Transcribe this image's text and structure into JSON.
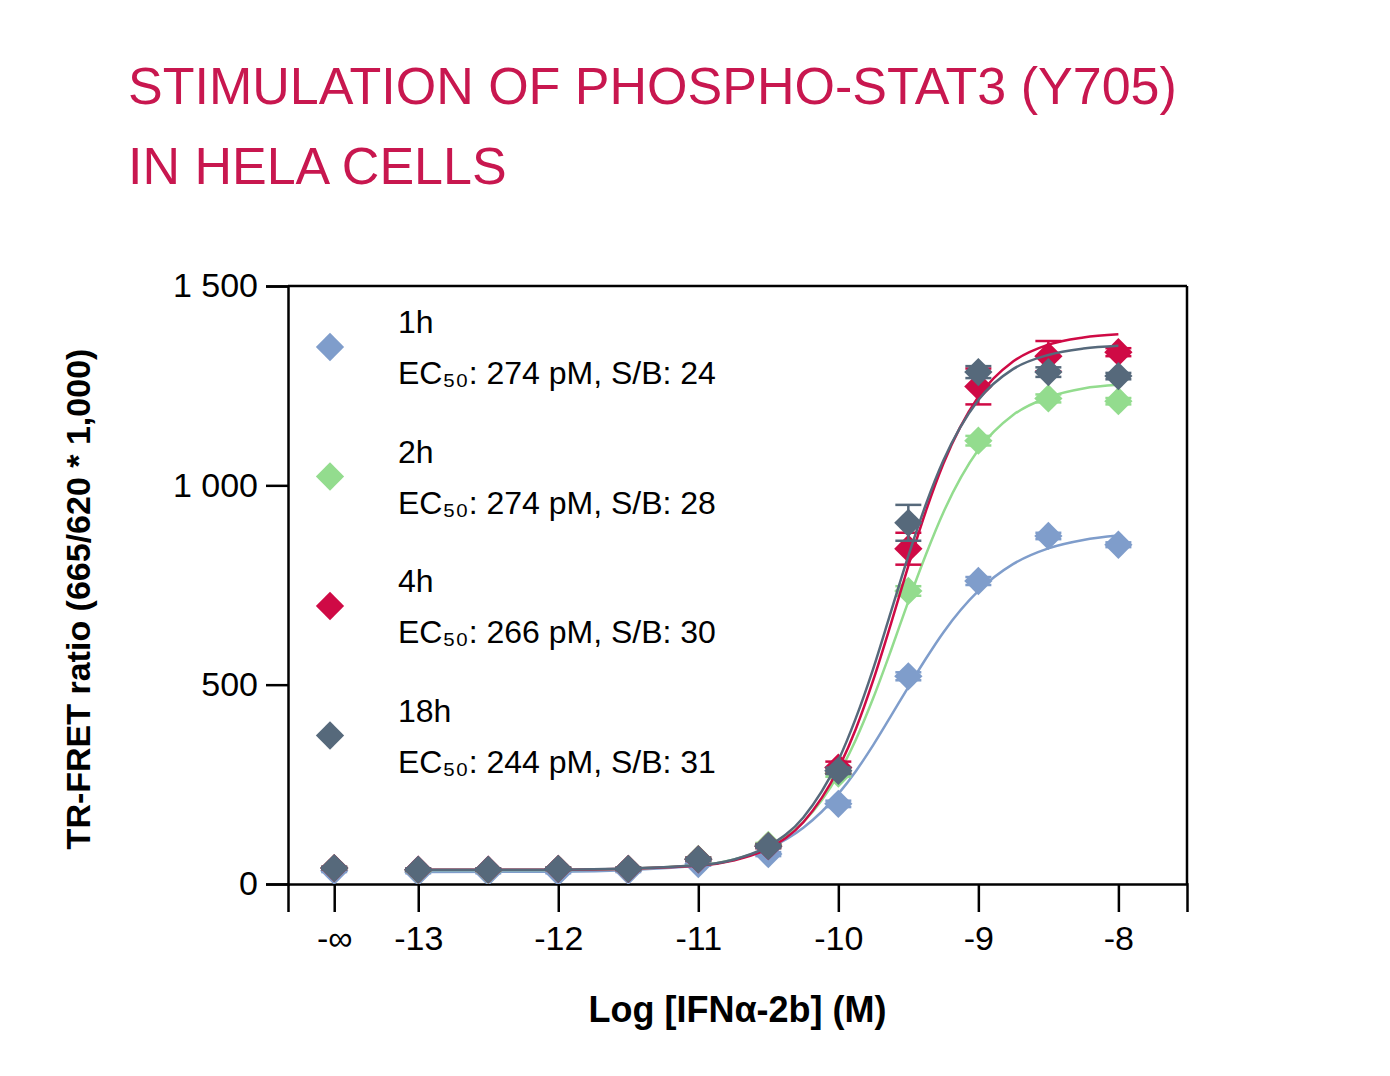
{
  "chart_data": {
    "type": "scatter",
    "title": [
      "STIMULATION OF PHOSPHO-STAT3 (Y705)",
      "IN HELA CELLS"
    ],
    "x_label": "Log [IFNα-2b] (M)",
    "y_label": "TR-FRET ratio (665/620 * 1,000)",
    "xlim": [
      -13.93,
      -7.51
    ],
    "ylim": [
      0,
      1500
    ],
    "xticks": [
      {
        "value": -13.6,
        "label": "-∞"
      },
      -13,
      -12,
      -11,
      -10,
      -9,
      -8
    ],
    "yticks": [
      0,
      500,
      {
        "value": 1000,
        "label": "1 000"
      },
      {
        "value": 1500,
        "label": "1 500"
      }
    ],
    "grid": false,
    "legend": "top-left",
    "x": [
      -13.6,
      -13,
      -12.5,
      -12,
      -11.5,
      -11,
      -10.5,
      -10,
      -9.5,
      -9,
      -8.5,
      -8
    ],
    "fit_x": [
      -13,
      -12,
      -11,
      -10.75,
      -10.5,
      -10.25,
      -10,
      -9.875,
      -9.75,
      -9.625,
      -9.5,
      -9.375,
      -9.25,
      -9,
      -8.75,
      -8.5,
      -8.25,
      -8
    ],
    "series": [
      {
        "name": "1h",
        "annotation": "EC₅₀: 274 pM, S/B: 24",
        "color": "#7f9dcb",
        "marker": "diamond",
        "values": [
          33,
          30,
          30,
          30,
          33,
          50,
          75,
          201,
          521,
          760,
          873,
          851
        ],
        "errors": [
          3,
          3,
          3,
          3,
          3,
          4,
          5,
          8,
          10,
          10,
          8,
          6
        ],
        "fit_values": [
          30,
          31,
          46,
          61,
          89,
          141,
          226,
          283,
          349,
          421,
          494,
          565,
          631,
          735,
          803,
          842,
          863,
          874
        ]
      },
      {
        "name": "2h",
        "annotation": "EC₅₀: 274 pM, S/B: 28",
        "color": "#93dc8e",
        "marker": "diamond",
        "values": [
          40,
          35,
          35,
          38,
          38,
          63,
          98,
          277,
          735,
          1112,
          1218,
          1211
        ],
        "errors": [
          3,
          3,
          3,
          3,
          3,
          4,
          5,
          8,
          12,
          12,
          10,
          8
        ],
        "fit_values": [
          35,
          35,
          47,
          61,
          92,
          155,
          275,
          362,
          467,
          585,
          709,
          826,
          932,
          1089,
          1177,
          1221,
          1243,
          1252
        ]
      },
      {
        "name": "4h",
        "annotation": "EC₅₀: 266 pM, S/B: 30",
        "color": "#cf0a45",
        "marker": "diamond",
        "values": [
          40,
          36,
          36,
          38,
          38,
          62,
          95,
          292,
          841,
          1248,
          1324,
          1334
        ],
        "errors": [
          3,
          3,
          3,
          3,
          3,
          4,
          5,
          15,
          40,
          45,
          38,
          10
        ],
        "fit_values": [
          36,
          36,
          46,
          59,
          89,
          155,
          289,
          389,
          512,
          652,
          798,
          935,
          1054,
          1222,
          1311,
          1353,
          1371,
          1379
        ]
      },
      {
        "name": "18h",
        "annotation": "EC₅₀: 244 pM, S/B: 31",
        "color": "#56697b",
        "marker": "diamond",
        "values": [
          40,
          36,
          36,
          38,
          38,
          62,
          95,
          284,
          906,
          1284,
          1284,
          1274
        ],
        "errors": [
          3,
          3,
          3,
          3,
          3,
          4,
          5,
          8,
          45,
          15,
          12,
          8
        ],
        "fit_values": [
          36,
          36,
          47,
          61,
          95,
          167,
          310,
          416,
          541,
          682,
          823,
          952,
          1062,
          1214,
          1292,
          1327,
          1343,
          1350
        ]
      }
    ]
  }
}
